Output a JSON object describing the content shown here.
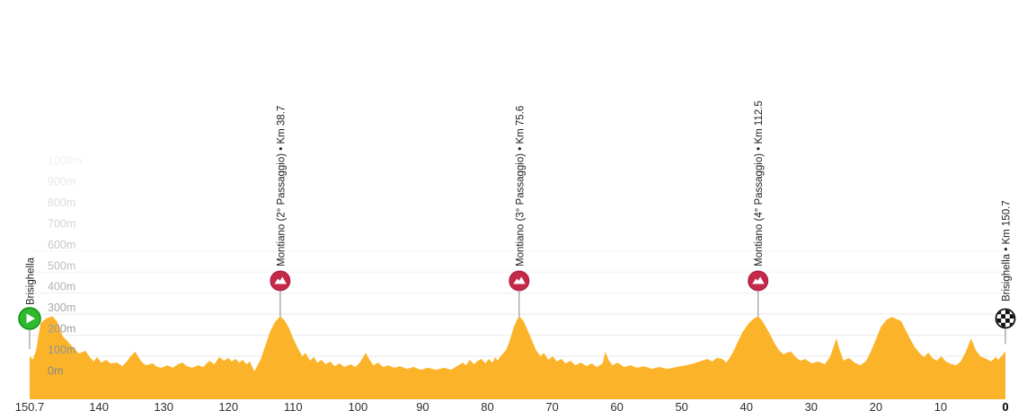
{
  "colors": {
    "profile_fill": "#FBB42A",
    "climb_marker_fill": "#C5294A",
    "climb_marker_border": "#A81E3D",
    "start_marker_fill": "#2EB92E",
    "start_marker_border": "#12930F",
    "finish_marker_color": "#111111",
    "gridline": "#e9e9e9",
    "connector_line": "#999999",
    "x_label_color": "#2e2e2e",
    "x_label_bold_color": "#000000",
    "climb_label_color": "#1b1b1b"
  },
  "chart_data": {
    "type": "area",
    "description": "Stage elevation profile, yellow area chart, x axis = km to go (right to left from 150.7 to 0), y axis = elevation in metres",
    "total_km": 150.7,
    "ylim_m": [
      0,
      1000
    ],
    "grid": "horizontal, fading upward",
    "y_ticks": [
      {
        "label": "0m",
        "m": 0
      },
      {
        "label": "100m",
        "m": 100
      },
      {
        "label": "200m",
        "m": 200
      },
      {
        "label": "300m",
        "m": 300
      },
      {
        "label": "400m",
        "m": 400
      },
      {
        "label": "500m",
        "m": 500
      },
      {
        "label": "600m",
        "m": 600
      },
      {
        "label": "700m",
        "m": 700
      },
      {
        "label": "800m",
        "m": 800
      },
      {
        "label": "900m",
        "m": 900
      },
      {
        "label": "1000m",
        "m": 1000
      }
    ],
    "x_ticks": [
      {
        "label": "150.7",
        "km_to_go": 150.7,
        "bold": false
      },
      {
        "label": "140",
        "km_to_go": 140,
        "bold": false
      },
      {
        "label": "130",
        "km_to_go": 130,
        "bold": false
      },
      {
        "label": "120",
        "km_to_go": 120,
        "bold": false
      },
      {
        "label": "110",
        "km_to_go": 110,
        "bold": false
      },
      {
        "label": "100",
        "km_to_go": 100,
        "bold": false
      },
      {
        "label": "90",
        "km_to_go": 90,
        "bold": false
      },
      {
        "label": "80",
        "km_to_go": 80,
        "bold": false
      },
      {
        "label": "70",
        "km_to_go": 70,
        "bold": false
      },
      {
        "label": "60",
        "km_to_go": 60,
        "bold": false
      },
      {
        "label": "50",
        "km_to_go": 50,
        "bold": false
      },
      {
        "label": "40",
        "km_to_go": 40,
        "bold": false
      },
      {
        "label": "30",
        "km_to_go": 30,
        "bold": false
      },
      {
        "label": "20",
        "km_to_go": 20,
        "bold": false
      },
      {
        "label": "10",
        "km_to_go": 10,
        "bold": false
      },
      {
        "label": "0",
        "km_to_go": 0,
        "bold": true
      }
    ],
    "markers": [
      {
        "type": "start",
        "km": 0,
        "label": "Brisighella"
      },
      {
        "type": "climb",
        "km": 38.7,
        "label": "Montiano (2° Passaggio) • Km 38.7"
      },
      {
        "type": "climb",
        "km": 75.6,
        "label": "Montiano (3° Passaggio) • Km 75.6"
      },
      {
        "type": "climb",
        "km": 112.5,
        "label": "Montiano (4° Passaggio) • Km 112.5"
      },
      {
        "type": "finish",
        "km": 150.7,
        "label": "Brisighella • Km 150.7"
      }
    ],
    "profile_points_km_m": [
      [
        0,
        100
      ],
      [
        0.5,
        85
      ],
      [
        1,
        130
      ],
      [
        1.7,
        258
      ],
      [
        2.6,
        280
      ],
      [
        3.5,
        290
      ],
      [
        4.2,
        267
      ],
      [
        5.1,
        195
      ],
      [
        6.8,
        140
      ],
      [
        7.6,
        113
      ],
      [
        8.6,
        126
      ],
      [
        9.3,
        96
      ],
      [
        9.9,
        75
      ],
      [
        10.4,
        96
      ],
      [
        11.1,
        70
      ],
      [
        11.8,
        83
      ],
      [
        12.5,
        66
      ],
      [
        13.5,
        70
      ],
      [
        14.3,
        53
      ],
      [
        15,
        75
      ],
      [
        15.7,
        104
      ],
      [
        16.3,
        122
      ],
      [
        16.8,
        96
      ],
      [
        17.4,
        70
      ],
      [
        18,
        57
      ],
      [
        19,
        66
      ],
      [
        19.7,
        49
      ],
      [
        20.4,
        45
      ],
      [
        21.3,
        57
      ],
      [
        22.1,
        45
      ],
      [
        22.9,
        62
      ],
      [
        23.6,
        70
      ],
      [
        24.3,
        53
      ],
      [
        25.1,
        45
      ],
      [
        26,
        57
      ],
      [
        26.8,
        49
      ],
      [
        27.8,
        79
      ],
      [
        28.5,
        62
      ],
      [
        29.3,
        96
      ],
      [
        30,
        79
      ],
      [
        30.7,
        92
      ],
      [
        31.2,
        75
      ],
      [
        31.8,
        87
      ],
      [
        32.4,
        70
      ],
      [
        32.9,
        83
      ],
      [
        33.5,
        62
      ],
      [
        34,
        75
      ],
      [
        34.7,
        28
      ],
      [
        35.7,
        87
      ],
      [
        36.4,
        150
      ],
      [
        37.1,
        215
      ],
      [
        37.8,
        258
      ],
      [
        38.4,
        280
      ],
      [
        38.7,
        290
      ],
      [
        39.4,
        270
      ],
      [
        40,
        237
      ],
      [
        40.7,
        185
      ],
      [
        41.4,
        140
      ],
      [
        42.1,
        100
      ],
      [
        42.6,
        117
      ],
      [
        43.3,
        79
      ],
      [
        43.9,
        96
      ],
      [
        44.4,
        70
      ],
      [
        45.1,
        83
      ],
      [
        45.7,
        62
      ],
      [
        46.4,
        75
      ],
      [
        47.1,
        53
      ],
      [
        47.9,
        66
      ],
      [
        48.6,
        49
      ],
      [
        49.6,
        62
      ],
      [
        50.3,
        49
      ],
      [
        51,
        70
      ],
      [
        51.5,
        96
      ],
      [
        51.9,
        117
      ],
      [
        52.5,
        83
      ],
      [
        53.1,
        57
      ],
      [
        53.8,
        70
      ],
      [
        54.6,
        49
      ],
      [
        55.4,
        57
      ],
      [
        56.3,
        45
      ],
      [
        57.2,
        53
      ],
      [
        58.2,
        40
      ],
      [
        59.3,
        49
      ],
      [
        60.4,
        36
      ],
      [
        61.5,
        45
      ],
      [
        62.8,
        36
      ],
      [
        64,
        45
      ],
      [
        65.1,
        36
      ],
      [
        66.2,
        57
      ],
      [
        66.9,
        70
      ],
      [
        67.4,
        57
      ],
      [
        68,
        83
      ],
      [
        68.6,
        62
      ],
      [
        69.2,
        79
      ],
      [
        69.8,
        87
      ],
      [
        70.4,
        66
      ],
      [
        70.9,
        87
      ],
      [
        71.5,
        70
      ],
      [
        71.9,
        96
      ],
      [
        72.3,
        79
      ],
      [
        72.7,
        100
      ],
      [
        73.1,
        113
      ],
      [
        73.6,
        130
      ],
      [
        74.2,
        180
      ],
      [
        74.8,
        240
      ],
      [
        75.3,
        275
      ],
      [
        75.6,
        290
      ],
      [
        76.3,
        267
      ],
      [
        76.8,
        232
      ],
      [
        77.5,
        181
      ],
      [
        78.2,
        130
      ],
      [
        78.9,
        100
      ],
      [
        79.4,
        117
      ],
      [
        80.1,
        83
      ],
      [
        80.8,
        100
      ],
      [
        81.4,
        75
      ],
      [
        82.1,
        87
      ],
      [
        82.8,
        66
      ],
      [
        83.5,
        79
      ],
      [
        84.3,
        57
      ],
      [
        85.1,
        70
      ],
      [
        86,
        53
      ],
      [
        86.8,
        66
      ],
      [
        87.6,
        49
      ],
      [
        88.5,
        66
      ],
      [
        88.9,
        122
      ],
      [
        89.4,
        83
      ],
      [
        90,
        57
      ],
      [
        90.8,
        70
      ],
      [
        91.8,
        49
      ],
      [
        92.8,
        57
      ],
      [
        93.8,
        45
      ],
      [
        94.9,
        53
      ],
      [
        96,
        40
      ],
      [
        97.2,
        49
      ],
      [
        98.5,
        40
      ],
      [
        99.9,
        49
      ],
      [
        101.3,
        57
      ],
      [
        102.6,
        66
      ],
      [
        103.8,
        79
      ],
      [
        104.7,
        87
      ],
      [
        105.4,
        75
      ],
      [
        106.1,
        92
      ],
      [
        107,
        87
      ],
      [
        107.6,
        70
      ],
      [
        108.2,
        96
      ],
      [
        108.8,
        130
      ],
      [
        109.3,
        164
      ],
      [
        110.1,
        215
      ],
      [
        111,
        254
      ],
      [
        111.8,
        279
      ],
      [
        112.5,
        290
      ],
      [
        113.1,
        271
      ],
      [
        113.6,
        245
      ],
      [
        114.3,
        207
      ],
      [
        115,
        164
      ],
      [
        115.7,
        130
      ],
      [
        116.4,
        109
      ],
      [
        116.9,
        117
      ],
      [
        117.6,
        122
      ],
      [
        118.3,
        96
      ],
      [
        119,
        79
      ],
      [
        119.8,
        87
      ],
      [
        120.8,
        66
      ],
      [
        121.8,
        75
      ],
      [
        122.8,
        62
      ],
      [
        123.6,
        96
      ],
      [
        124.6,
        185
      ],
      [
        125.1,
        130
      ],
      [
        125.7,
        79
      ],
      [
        126.5,
        92
      ],
      [
        127.4,
        70
      ],
      [
        128.3,
        57
      ],
      [
        129.2,
        79
      ],
      [
        129.9,
        122
      ],
      [
        130.7,
        181
      ],
      [
        131.5,
        241
      ],
      [
        132.4,
        275
      ],
      [
        133.2,
        287
      ],
      [
        134,
        275
      ],
      [
        134.6,
        267
      ],
      [
        135.3,
        224
      ],
      [
        136,
        181
      ],
      [
        136.8,
        139
      ],
      [
        137.5,
        113
      ],
      [
        138.1,
        96
      ],
      [
        138.8,
        117
      ],
      [
        139.4,
        92
      ],
      [
        140.1,
        79
      ],
      [
        140.8,
        100
      ],
      [
        141.5,
        75
      ],
      [
        142.4,
        62
      ],
      [
        143.1,
        57
      ],
      [
        143.8,
        75
      ],
      [
        144.6,
        122
      ],
      [
        145.4,
        185
      ],
      [
        146.1,
        130
      ],
      [
        146.8,
        100
      ],
      [
        147.8,
        87
      ],
      [
        148.5,
        75
      ],
      [
        149.2,
        96
      ],
      [
        149.6,
        83
      ],
      [
        150.2,
        104
      ],
      [
        150.7,
        125
      ]
    ]
  }
}
